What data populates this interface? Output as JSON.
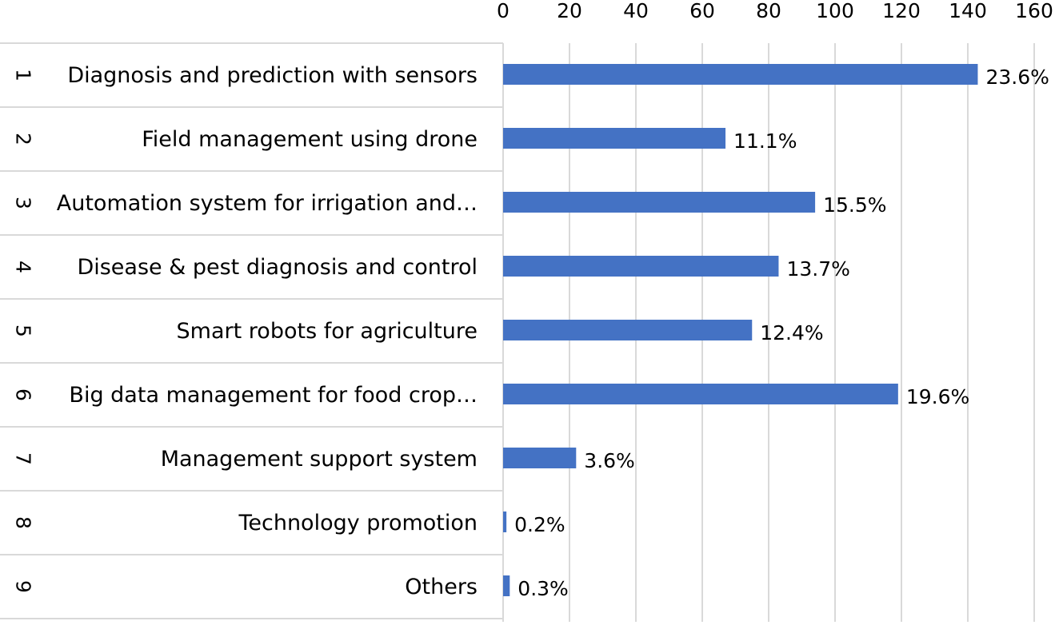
{
  "chart_data": {
    "type": "bar",
    "orientation": "horizontal",
    "axis_position": "top",
    "xlim": [
      0,
      160
    ],
    "x_ticks": [
      0,
      20,
      40,
      60,
      80,
      100,
      120,
      140,
      160
    ],
    "grid": true,
    "legend": "none",
    "group_labels": [
      "1",
      "2",
      "3",
      "4",
      "5",
      "6",
      "7",
      "8",
      "9"
    ],
    "categories": [
      "Diagnosis and prediction with sensors",
      "Field management using drone",
      "Automation system for irrigation and…",
      "Disease & pest diagnosis and control",
      "Smart robots for agriculture",
      "Big data management for food crop…",
      "Management support system",
      "Technology promotion",
      "Others"
    ],
    "values": [
      143,
      67,
      94,
      83,
      75,
      119,
      22,
      1,
      2
    ],
    "data_labels": [
      "23.6%",
      "11.1%",
      "15.5%",
      "13.7%",
      "12.4%",
      "19.6%",
      "3.6%",
      "0.2%",
      "0.3%"
    ],
    "colors": {
      "bar": "#4472C4",
      "gridline": "#D9D9D9",
      "text": "#000000"
    }
  }
}
